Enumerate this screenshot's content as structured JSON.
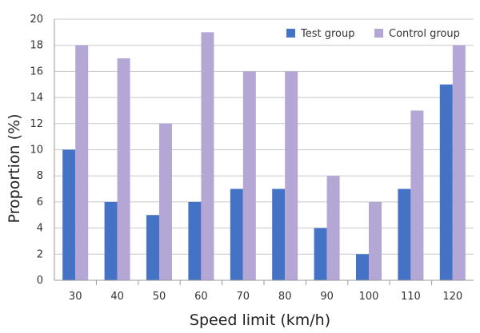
{
  "chart_data": {
    "type": "bar",
    "title": "",
    "xlabel": "Speed limit (km/h)",
    "ylabel": "Proportion (%)",
    "ylim": [
      0,
      20
    ],
    "yticks": [
      0,
      2,
      4,
      6,
      8,
      10,
      12,
      14,
      16,
      18,
      20
    ],
    "grid": true,
    "legend_position": "top-right",
    "categories": [
      "30",
      "40",
      "50",
      "60",
      "70",
      "80",
      "90",
      "100",
      "110",
      "120"
    ],
    "series": [
      {
        "name": "Test group",
        "color": "#4472c4",
        "values": [
          10,
          6,
          5,
          6,
          7,
          7,
          4,
          2,
          7,
          15
        ]
      },
      {
        "name": "Control group",
        "color": "#b4a7d6",
        "values": [
          18,
          17,
          12,
          19,
          16,
          16,
          8,
          6,
          13,
          18
        ]
      }
    ]
  }
}
